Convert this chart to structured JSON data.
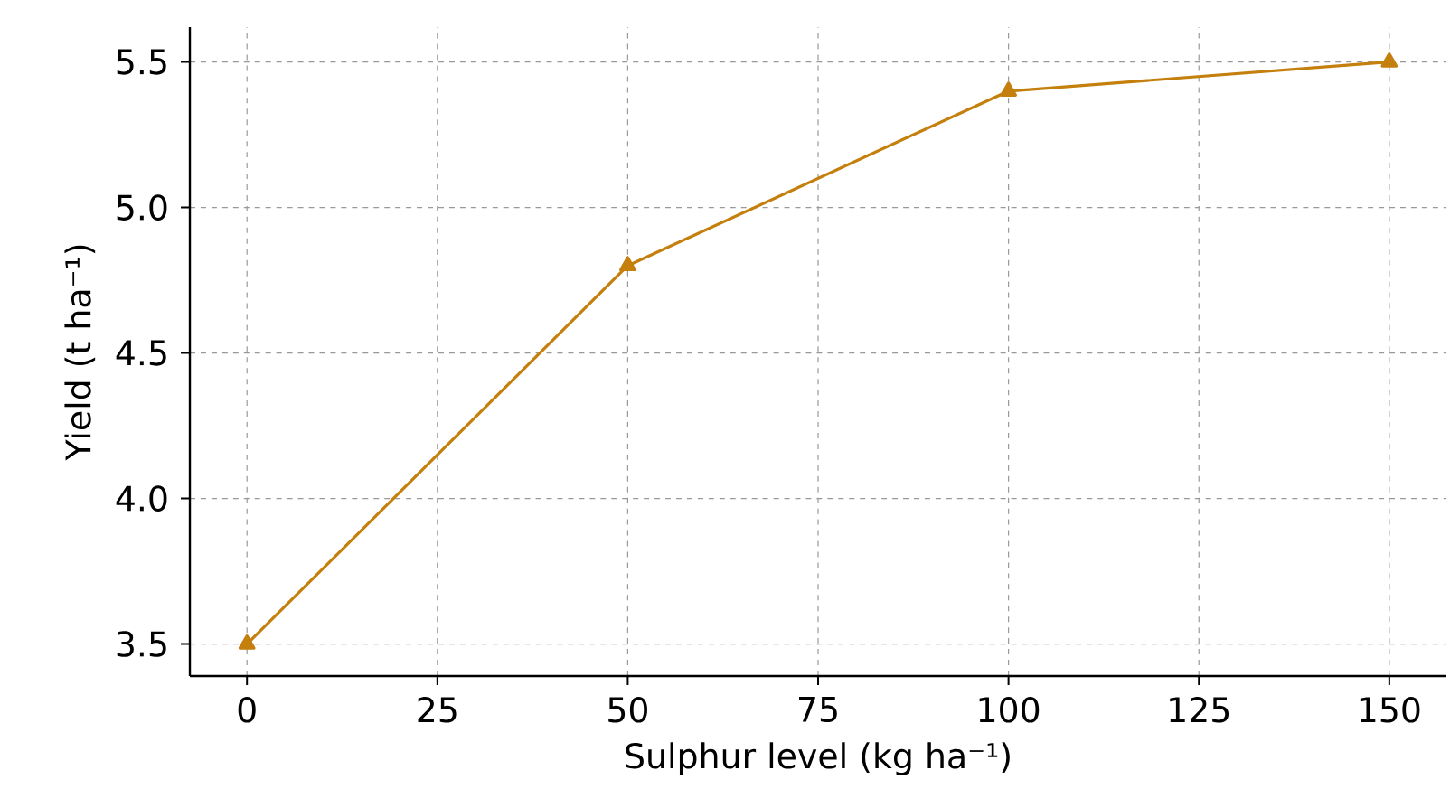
{
  "chart_data": {
    "type": "line",
    "xlabel": "Sulphur level (kg ha⁻¹)",
    "ylabel": "Yield (t ha⁻¹)",
    "x": [
      0,
      50,
      100,
      150
    ],
    "series": [
      {
        "color": "#c47f0c",
        "values": [
          3.5,
          4.8,
          5.4,
          5.5
        ]
      }
    ],
    "xlim": [
      -7.5,
      157.5
    ],
    "ylim": [
      3.39,
      5.62
    ],
    "xticks": [
      0,
      25,
      50,
      75,
      100,
      125,
      150
    ],
    "yticks": [
      3.5,
      {
        "value": 4,
        "label": "4.0"
      },
      4.5,
      {
        "value": 5,
        "label": "5.0"
      },
      5.5
    ],
    "grid": true,
    "marker": "triangle",
    "line_style": "solid"
  }
}
